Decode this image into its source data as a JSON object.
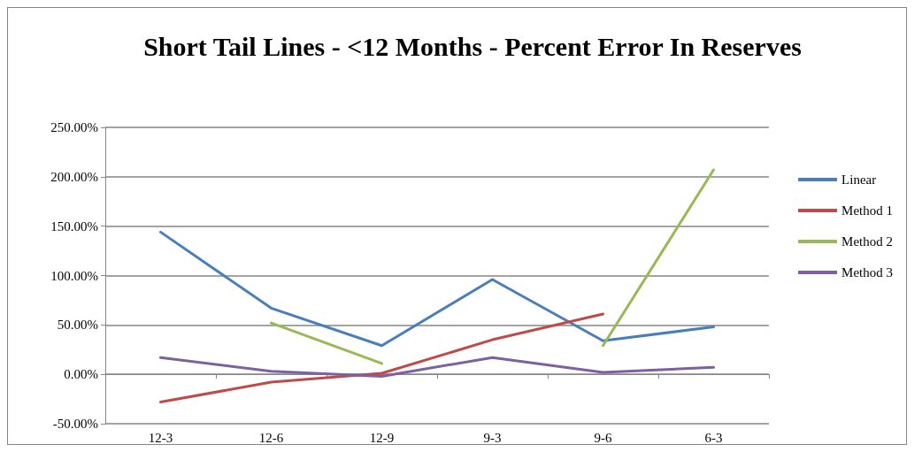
{
  "chart_data": {
    "type": "line",
    "title": "Short Tail Lines - <12 Months - Percent Error In Reserves",
    "categories": [
      "12-3",
      "12-6",
      "12-9",
      "9-3",
      "9-6",
      "6-3"
    ],
    "series": [
      {
        "name": "Linear",
        "color": "#4a7ebb",
        "values": [
          144,
          67,
          29,
          96,
          34,
          48
        ]
      },
      {
        "name": "Method 1",
        "color": "#be4b48",
        "values": [
          -28,
          -8,
          1,
          35,
          61,
          null
        ]
      },
      {
        "name": "Method 2",
        "color": "#98b954",
        "values": [
          null,
          52,
          11,
          null,
          29,
          207
        ]
      },
      {
        "name": "Method 3",
        "color": "#7d60a0",
        "values": [
          17,
          3,
          -2,
          17,
          2,
          7
        ]
      }
    ],
    "ylim": [
      -50,
      250
    ],
    "yticks": [
      {
        "value": -50,
        "label": "-50.00%"
      },
      {
        "value": 0,
        "label": "0.00%"
      },
      {
        "value": 50,
        "label": "50.00%"
      },
      {
        "value": 100,
        "label": "100.00%"
      },
      {
        "value": 150,
        "label": "150.00%"
      },
      {
        "value": 200,
        "label": "200.00%"
      },
      {
        "value": 250,
        "label": "250.00%"
      }
    ],
    "grid": "y",
    "legend": "right",
    "marker": "none",
    "line_style": "solid"
  }
}
